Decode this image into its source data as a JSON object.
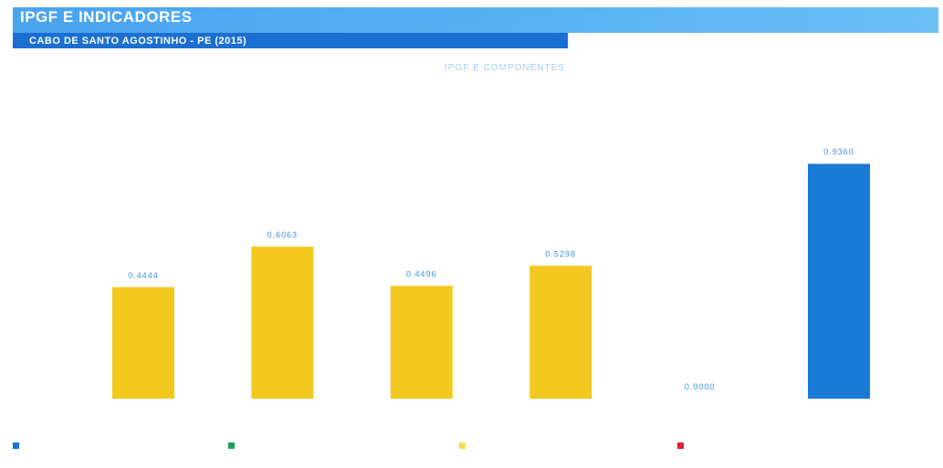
{
  "header": {
    "title": "IPGF E INDICADORES",
    "subtitle": "CABO DE SANTO AGOSTINHO - PE (2015)"
  },
  "chart_data": {
    "type": "bar",
    "title": "IPGF E COMPONENTES",
    "categories": [
      "",
      "",
      "",
      "",
      "",
      ""
    ],
    "values": [
      0.4444,
      0.6063,
      0.4496,
      0.5298,
      0.0,
      0.936
    ],
    "data_labels": [
      "0.4444",
      "0.6063",
      "0.4496",
      "0.5298",
      "0.0000",
      "0.9360"
    ],
    "colors": [
      "#f3c81f",
      "#f3c81f",
      "#f3c81f",
      "#f3c81f",
      "#f3c81f",
      "#1a7ad6"
    ],
    "ylim": [
      0,
      1
    ],
    "grid": false,
    "legend_position": "bottom"
  },
  "legend": [
    {
      "color": "#1a73d6",
      "label": ""
    },
    {
      "color": "#1fa05a",
      "label": ""
    },
    {
      "color": "#f5e24a",
      "label": ""
    },
    {
      "color": "#e01e3a",
      "label": ""
    }
  ]
}
